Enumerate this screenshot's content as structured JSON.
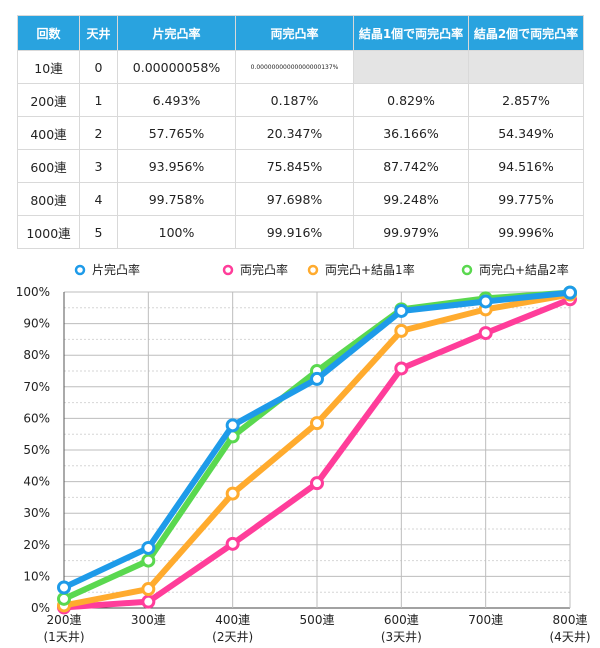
{
  "table": {
    "headers": [
      "回数",
      "天井",
      "片完凸率",
      "両完凸率",
      "結晶1個で両完凸率",
      "結晶2個で両完凸率"
    ],
    "rows": [
      [
        "10連",
        "0",
        "0.00000058%",
        "0.00000000000000000137%",
        "",
        ""
      ],
      [
        "200連",
        "1",
        "6.493%",
        "0.187%",
        "0.829%",
        "2.857%"
      ],
      [
        "400連",
        "2",
        "57.765%",
        "20.347%",
        "36.166%",
        "54.349%"
      ],
      [
        "600連",
        "3",
        "93.956%",
        "75.845%",
        "87.742%",
        "94.516%"
      ],
      [
        "800連",
        "4",
        "99.758%",
        "97.698%",
        "99.248%",
        "99.775%"
      ],
      [
        "1000連",
        "5",
        "100%",
        "99.916%",
        "99.979%",
        "99.996%"
      ]
    ]
  },
  "chart_data": {
    "type": "line",
    "x": [
      200,
      300,
      400,
      500,
      600,
      700,
      800
    ],
    "x_tick_labels": [
      "200連",
      "300連",
      "400連",
      "500連",
      "600連",
      "700連",
      "800連"
    ],
    "x_sub_labels": [
      "(1天井)",
      "",
      "(2天井)",
      "",
      "(3天井)",
      "",
      "(4天井)"
    ],
    "y_tick_labels": [
      "0%",
      "10%",
      "20%",
      "30%",
      "40%",
      "50%",
      "60%",
      "70%",
      "80%",
      "90%",
      "100%"
    ],
    "ylim": [
      0,
      100
    ],
    "grid": true,
    "legend_position": "top",
    "series": [
      {
        "name": "両完凸率",
        "color": "#ff3d9a",
        "values": [
          0.2,
          2,
          20.3,
          39.5,
          75.8,
          87,
          97.7
        ]
      },
      {
        "name": "両完凸+結晶1率",
        "color": "#ffab2e",
        "values": [
          0.8,
          6,
          36.2,
          58.5,
          87.7,
          94.5,
          99.2
        ]
      },
      {
        "name": "両完凸+結晶2率",
        "color": "#5ad84f",
        "values": [
          2.9,
          15,
          54.3,
          75,
          94.5,
          98,
          99.8
        ]
      },
      {
        "name": "片完凸率",
        "color": "#1e9be9",
        "values": [
          6.5,
          19,
          57.8,
          72.5,
          94,
          97,
          99.8
        ]
      }
    ],
    "legend_order": [
      "片完凸率",
      "両完凸率",
      "両完凸+結晶1率",
      "両完凸+結晶2率"
    ]
  }
}
